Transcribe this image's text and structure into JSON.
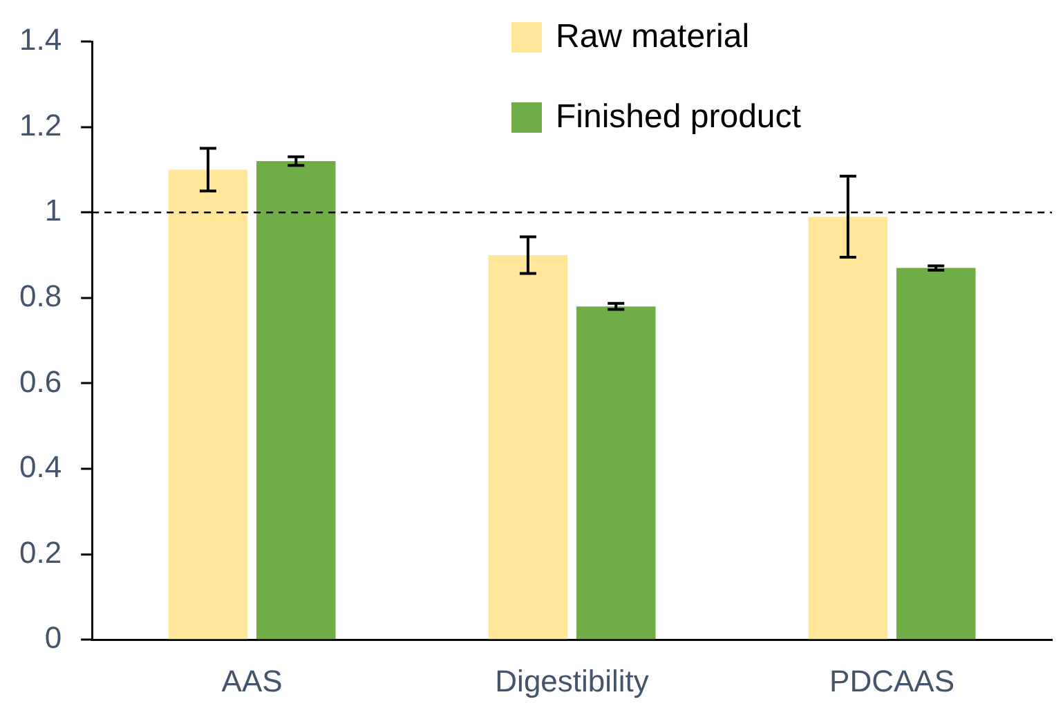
{
  "chart_data": {
    "type": "bar",
    "categories": [
      "AAS",
      "Digestibility",
      "PDCAAS"
    ],
    "series": [
      {
        "name": "Raw material",
        "color": "#ffe699",
        "values": [
          1.1,
          0.9,
          0.99
        ],
        "errors": [
          0.05,
          0.043,
          0.095
        ]
      },
      {
        "name": "Finished product",
        "color": "#70ad47",
        "values": [
          1.12,
          0.78,
          0.87
        ],
        "errors": [
          0.01,
          0.007,
          0.005
        ]
      }
    ],
    "ylim": [
      0,
      1.4
    ],
    "yticks": [
      0,
      0.2,
      0.4,
      0.6,
      0.8,
      1,
      1.2,
      1.4
    ],
    "ref_lines": [
      {
        "axis": "y",
        "value": 1,
        "line_style": "dashed",
        "color": "#000000"
      }
    ],
    "grid": false,
    "legend": "top right"
  }
}
